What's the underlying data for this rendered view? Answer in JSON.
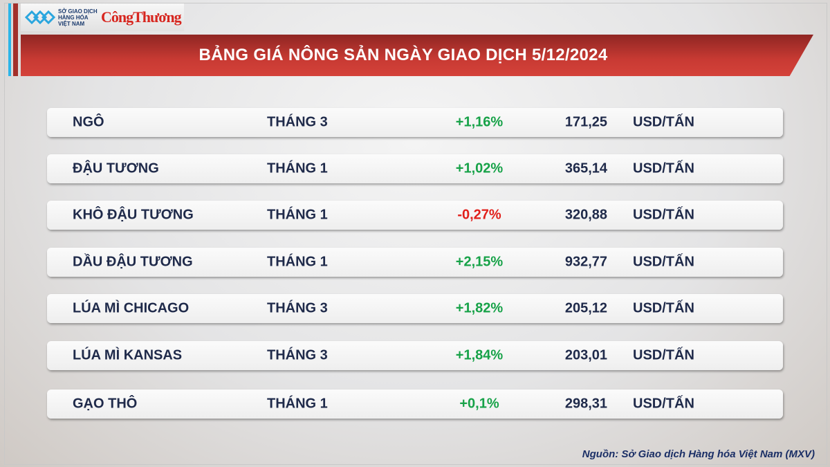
{
  "logo": {
    "org": "SỞ GIAO DỊCH HÀNG HÓA VIỆT NAM",
    "brand": "CôngThương"
  },
  "title": "BẢNG GIÁ NÔNG SẢN NGÀY GIAO DỊCH 5/12/2024",
  "colors": {
    "up": "#17a248",
    "down": "#e1201b",
    "title_bar": "#c83a33"
  },
  "rows": [
    {
      "name": "NGÔ",
      "month": "THÁNG 3",
      "change": "+1,16%",
      "direction": "up",
      "price": "171,25",
      "unit": "USD/TẤN"
    },
    {
      "name": "ĐẬU TƯƠNG",
      "month": "THÁNG 1",
      "change": "+1,02%",
      "direction": "up",
      "price": "365,14",
      "unit": "USD/TẤN"
    },
    {
      "name": "KHÔ ĐẬU TƯƠNG",
      "month": "THÁNG 1",
      "change": "-0,27%",
      "direction": "down",
      "price": "320,88",
      "unit": "USD/TẤN"
    },
    {
      "name": "DẦU ĐẬU TƯƠNG",
      "month": "THÁNG 1",
      "change": "+2,15%",
      "direction": "up",
      "price": "932,77",
      "unit": "USD/TẤN"
    },
    {
      "name": "LÚA MÌ CHICAGO",
      "month": "THÁNG 3",
      "change": "+1,82%",
      "direction": "up",
      "price": "205,12",
      "unit": "USD/TẤN"
    },
    {
      "name": "LÚA MÌ KANSAS",
      "month": "THÁNG 3",
      "change": "+1,84%",
      "direction": "up",
      "price": "203,01",
      "unit": "USD/TẤN"
    },
    {
      "name": "GẠO THÔ",
      "month": "THÁNG 1",
      "change": "+0,1%",
      "direction": "up",
      "price": "298,31",
      "unit": "USD/TẤN"
    }
  ],
  "source": "Nguồn: Sở Giao dịch Hàng hóa Việt Nam (MXV)"
}
